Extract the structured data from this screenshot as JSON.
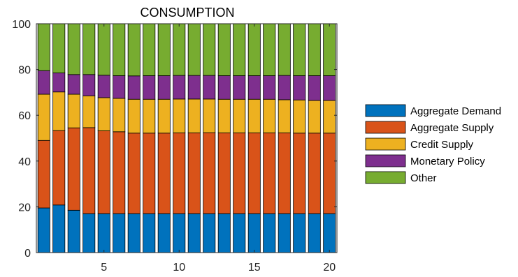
{
  "chart_data": {
    "type": "bar",
    "stacked": true,
    "title": "CONSUMPTION",
    "xlabel": "",
    "ylabel": "",
    "xlim": [
      0.5,
      20.5
    ],
    "ylim": [
      0,
      100
    ],
    "x": [
      1,
      2,
      3,
      4,
      5,
      6,
      7,
      8,
      9,
      10,
      11,
      12,
      13,
      14,
      15,
      16,
      17,
      18,
      19,
      20
    ],
    "xticks": [
      5,
      10,
      15,
      20
    ],
    "yticks": [
      0,
      20,
      40,
      60,
      80,
      100
    ],
    "grid": false,
    "legend_placement": "right",
    "series": [
      {
        "name": "Aggregate Demand",
        "color": "#0072BD",
        "values": [
          19.5,
          20.8,
          18.5,
          17.0,
          17.0,
          17.0,
          17.0,
          17.0,
          17.0,
          17.0,
          17.0,
          17.0,
          17.0,
          17.0,
          17.0,
          17.0,
          17.0,
          17.0,
          17.0,
          17.0
        ]
      },
      {
        "name": "Aggregate Supply",
        "color": "#D95319",
        "values": [
          29.5,
          32.5,
          36.0,
          37.6,
          36.2,
          35.8,
          35.2,
          35.2,
          35.2,
          35.3,
          35.3,
          35.4,
          35.3,
          35.3,
          35.3,
          35.3,
          35.3,
          35.2,
          35.2,
          35.2
        ]
      },
      {
        "name": "Credit Supply",
        "color": "#EDB120",
        "values": [
          20.2,
          16.9,
          14.7,
          13.9,
          14.5,
          14.6,
          14.8,
          14.8,
          14.8,
          14.8,
          14.8,
          14.7,
          14.7,
          14.7,
          14.7,
          14.7,
          14.5,
          14.5,
          14.3,
          14.3
        ]
      },
      {
        "name": "Monetary Policy",
        "color": "#7E2F8E",
        "values": [
          10.3,
          8.3,
          8.6,
          9.3,
          9.8,
          9.9,
          10.2,
          10.3,
          10.3,
          10.3,
          10.3,
          10.3,
          10.3,
          10.3,
          10.3,
          10.3,
          10.6,
          10.6,
          10.8,
          10.8
        ]
      },
      {
        "name": "Other",
        "color": "#77AC30",
        "values": [
          20.5,
          21.5,
          22.2,
          22.2,
          22.5,
          22.7,
          22.8,
          22.7,
          22.7,
          22.6,
          22.6,
          22.6,
          22.7,
          22.7,
          22.7,
          22.7,
          22.6,
          22.7,
          22.7,
          22.7
        ]
      }
    ]
  }
}
